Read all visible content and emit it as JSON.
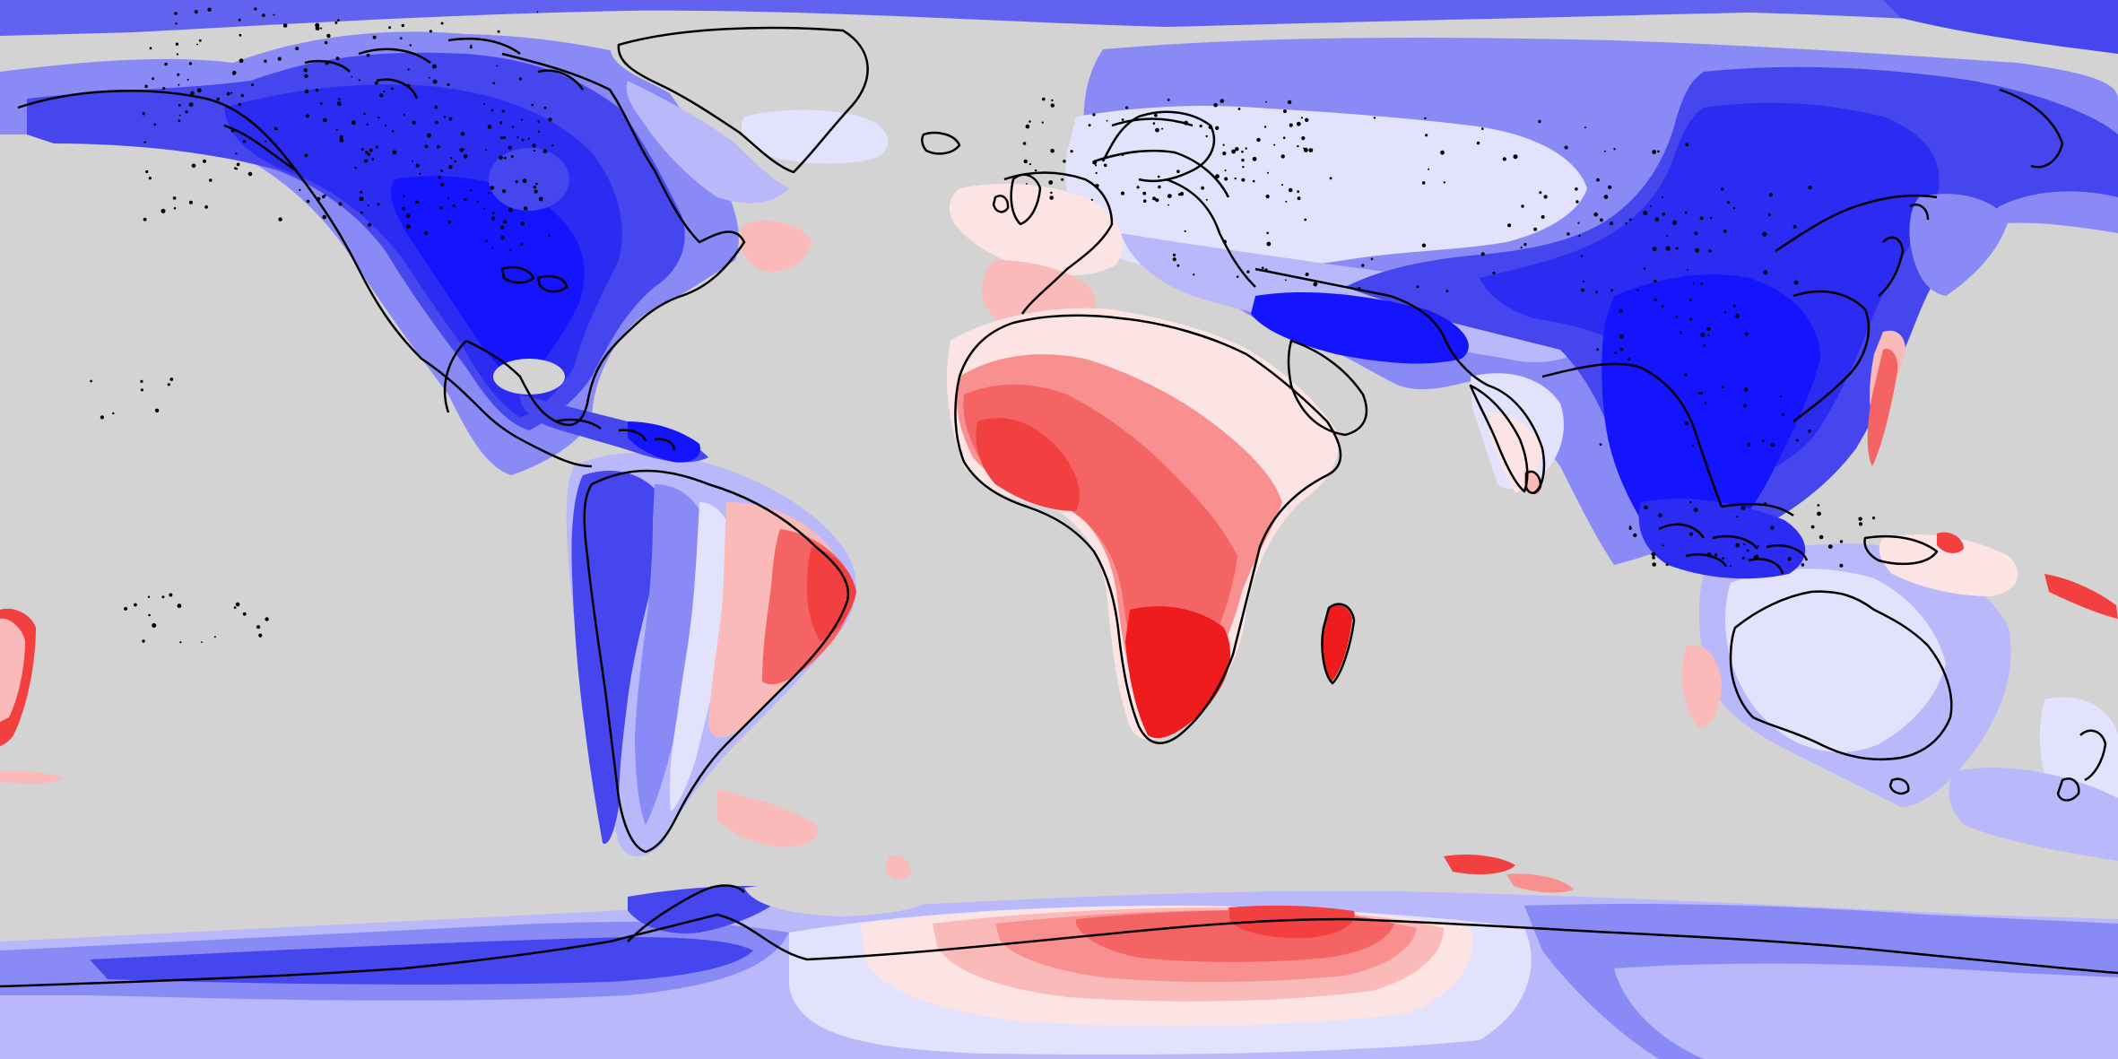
{
  "map": {
    "projection": "equirectangular",
    "ocean_color": "#d3d3d3",
    "coastline_color": "#000000",
    "palette": {
      "blue_strong": "#1414ff",
      "blue_dark": "#2b2bf2",
      "blue_mid": "#4646ee",
      "blue": "#6262f0",
      "blue_light": "#8a8af6",
      "blue_pale": "#b8b8fa",
      "blue_faint": "#e2e2fc",
      "neutral": "#f4eef4",
      "red_faint": "#fde4e4",
      "red_pale": "#fbbaba",
      "red_light": "#f89090",
      "red": "#f56464",
      "red_mid": "#f24040",
      "red_strong": "#ee1c1c"
    }
  }
}
